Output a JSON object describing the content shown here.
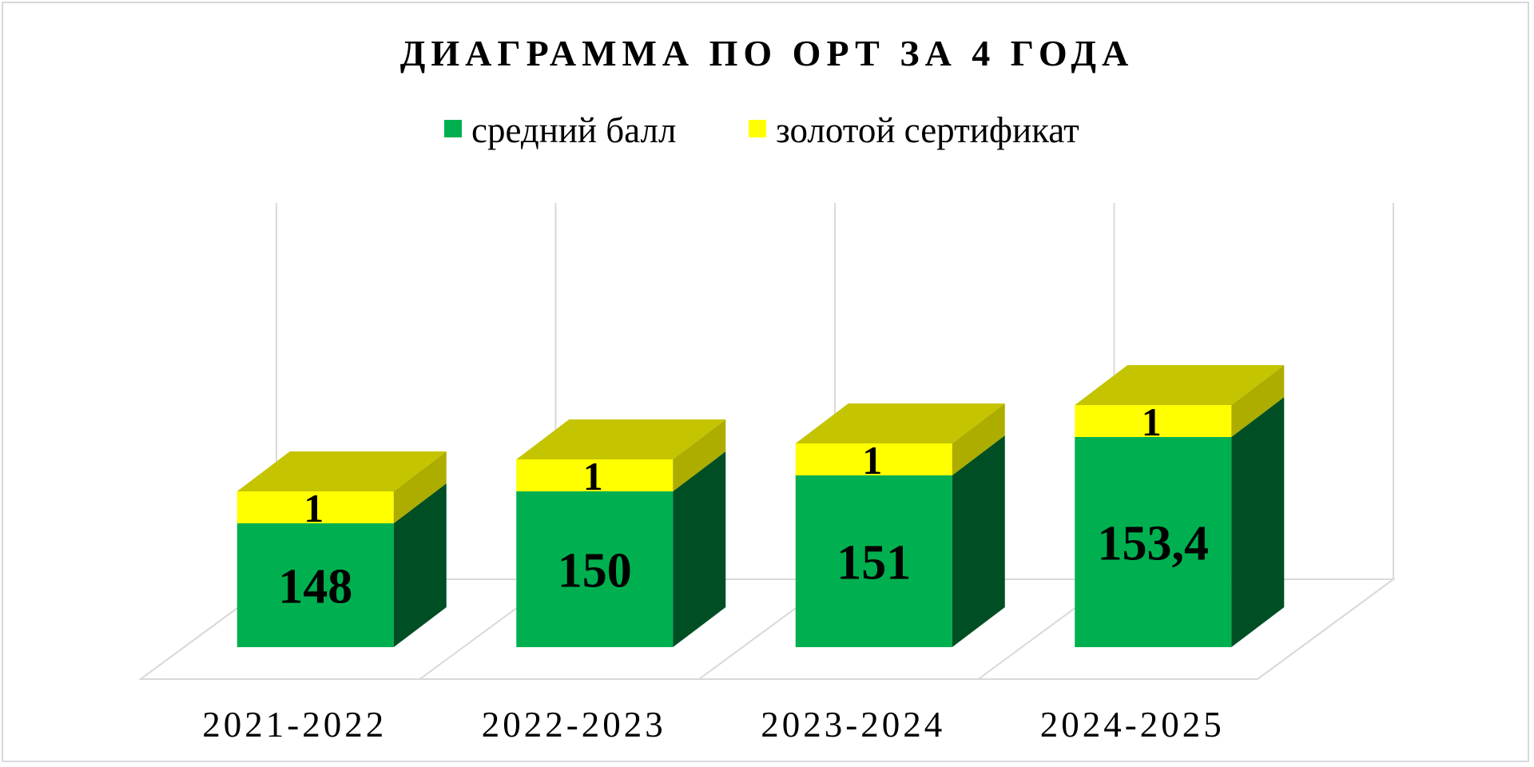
{
  "chart_data": {
    "type": "bar",
    "stacked": true,
    "three_d": true,
    "title": "ДИАГРАММА ПО ОРТ ЗА 4 ГОДА",
    "categories": [
      "2021-2022",
      "2022-2023",
      "2023-2024",
      "2024-2025"
    ],
    "series": [
      {
        "name": "средний балл",
        "values": [
          148,
          150,
          151,
          153.4
        ],
        "labels": [
          "148",
          "150",
          "151",
          "153,4"
        ],
        "color": "#00b050"
      },
      {
        "name": "золотой сертификат",
        "values": [
          1,
          1,
          1,
          1
        ],
        "labels": [
          "1",
          "1",
          "1",
          "1"
        ],
        "color": "#ffff00"
      }
    ],
    "legend_position": "top",
    "grid": true,
    "axis": {
      "y_visible": false
    }
  }
}
